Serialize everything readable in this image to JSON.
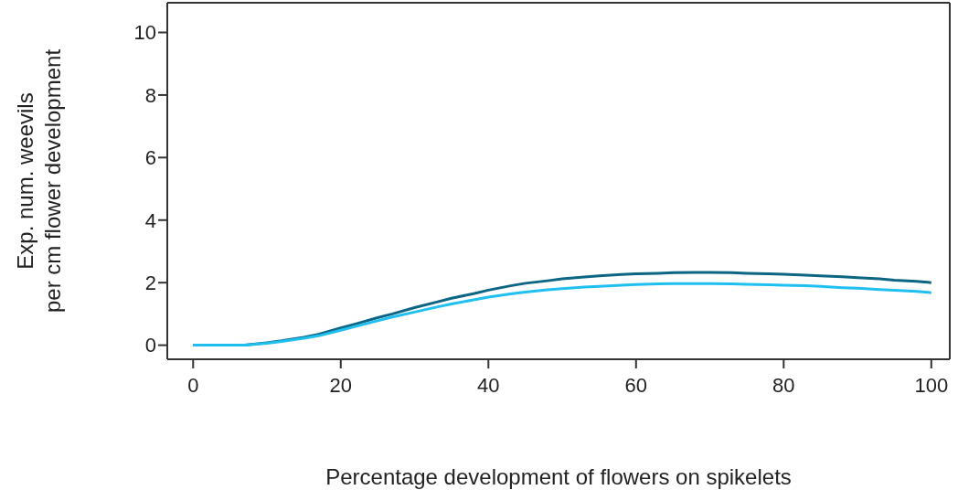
{
  "chart_data": {
    "type": "line",
    "xlabel": "Percentage development of flowers on spikelets",
    "ylabel": "Exp. num. weevils\nper cm flower development",
    "xlim": [
      -3.5,
      102.5
    ],
    "xticks": [
      0,
      20,
      40,
      60,
      80,
      100
    ],
    "ylim": [
      -0.45,
      10.95
    ],
    "yticks": [
      0,
      2,
      4,
      6,
      8,
      10
    ],
    "marker": "none",
    "line_style": "solid",
    "x": [
      0,
      5,
      7,
      10,
      12,
      15,
      17,
      20,
      22,
      25,
      27,
      30,
      33,
      35,
      38,
      40,
      43,
      45,
      48,
      50,
      53,
      55,
      58,
      60,
      63,
      65,
      68,
      70,
      73,
      75,
      78,
      80,
      83,
      85,
      88,
      90,
      93,
      95,
      98,
      100
    ],
    "series": [
      {
        "color": "#0b6583",
        "values": [
          0,
          0,
          0,
          0.08,
          0.14,
          0.25,
          0.35,
          0.55,
          0.68,
          0.88,
          1.0,
          1.2,
          1.38,
          1.5,
          1.65,
          1.76,
          1.9,
          1.98,
          2.06,
          2.12,
          2.18,
          2.22,
          2.26,
          2.28,
          2.3,
          2.32,
          2.33,
          2.33,
          2.32,
          2.3,
          2.28,
          2.27,
          2.24,
          2.22,
          2.19,
          2.16,
          2.12,
          2.08,
          2.04,
          2.0
        ]
      },
      {
        "color": "#1fbff0",
        "values": [
          0,
          0,
          0,
          0.06,
          0.12,
          0.22,
          0.3,
          0.48,
          0.6,
          0.78,
          0.9,
          1.06,
          1.22,
          1.32,
          1.45,
          1.54,
          1.64,
          1.7,
          1.77,
          1.81,
          1.86,
          1.88,
          1.92,
          1.94,
          1.96,
          1.97,
          1.97,
          1.97,
          1.96,
          1.95,
          1.93,
          1.92,
          1.9,
          1.88,
          1.84,
          1.82,
          1.78,
          1.76,
          1.72,
          1.68
        ]
      }
    ]
  }
}
